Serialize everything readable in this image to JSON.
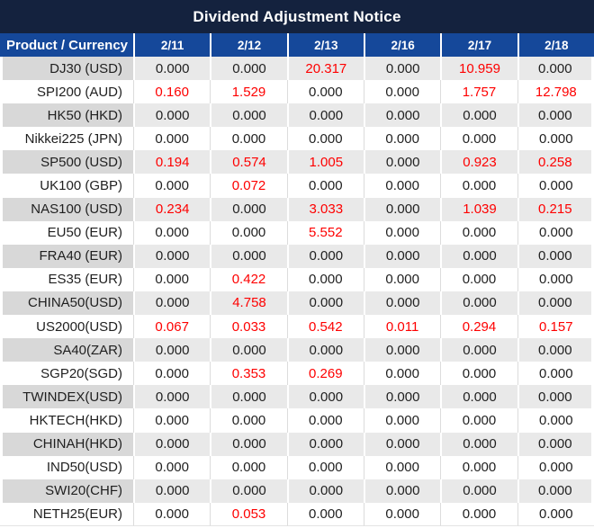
{
  "title": "Dividend Adjustment Notice",
  "colors": {
    "title_bg": "#14223e",
    "header_bg": "#15489a",
    "highlight_red": "#fe0000",
    "alt_row_product_bg": "#d8d8d8",
    "alt_row_value_bg": "#e9e9e9",
    "text_dark": "#1f1f1f"
  },
  "chart_data": {
    "type": "table",
    "title": "Dividend Adjustment Notice",
    "columns": [
      "Product / Currency",
      "2/11",
      "2/12",
      "2/13",
      "2/16",
      "2/17",
      "2/18"
    ],
    "highlight_rule": "non-zero values shown in red",
    "rows": [
      {
        "product": "DJ30 (USD)",
        "values": [
          "0.000",
          "0.000",
          "20.317",
          "0.000",
          "10.959",
          "0.000"
        ]
      },
      {
        "product": "SPI200 (AUD)",
        "values": [
          "0.160",
          "1.529",
          "0.000",
          "0.000",
          "1.757",
          "12.798"
        ]
      },
      {
        "product": "HK50 (HKD)",
        "values": [
          "0.000",
          "0.000",
          "0.000",
          "0.000",
          "0.000",
          "0.000"
        ]
      },
      {
        "product": "Nikkei225 (JPN)",
        "values": [
          "0.000",
          "0.000",
          "0.000",
          "0.000",
          "0.000",
          "0.000"
        ]
      },
      {
        "product": "SP500 (USD)",
        "values": [
          "0.194",
          "0.574",
          "1.005",
          "0.000",
          "0.923",
          "0.258"
        ]
      },
      {
        "product": "UK100 (GBP)",
        "values": [
          "0.000",
          "0.072",
          "0.000",
          "0.000",
          "0.000",
          "0.000"
        ]
      },
      {
        "product": "NAS100 (USD)",
        "values": [
          "0.234",
          "0.000",
          "3.033",
          "0.000",
          "1.039",
          "0.215"
        ]
      },
      {
        "product": "EU50 (EUR)",
        "values": [
          "0.000",
          "0.000",
          "5.552",
          "0.000",
          "0.000",
          "0.000"
        ]
      },
      {
        "product": "FRA40 (EUR)",
        "values": [
          "0.000",
          "0.000",
          "0.000",
          "0.000",
          "0.000",
          "0.000"
        ]
      },
      {
        "product": "ES35 (EUR)",
        "values": [
          "0.000",
          "0.422",
          "0.000",
          "0.000",
          "0.000",
          "0.000"
        ]
      },
      {
        "product": "CHINA50(USD)",
        "values": [
          "0.000",
          "4.758",
          "0.000",
          "0.000",
          "0.000",
          "0.000"
        ]
      },
      {
        "product": "US2000(USD)",
        "values": [
          "0.067",
          "0.033",
          "0.542",
          "0.011",
          "0.294",
          "0.157"
        ]
      },
      {
        "product": "SA40(ZAR)",
        "values": [
          "0.000",
          "0.000",
          "0.000",
          "0.000",
          "0.000",
          "0.000"
        ]
      },
      {
        "product": "SGP20(SGD)",
        "values": [
          "0.000",
          "0.353",
          "0.269",
          "0.000",
          "0.000",
          "0.000"
        ]
      },
      {
        "product": "TWINDEX(USD)",
        "values": [
          "0.000",
          "0.000",
          "0.000",
          "0.000",
          "0.000",
          "0.000"
        ]
      },
      {
        "product": "HKTECH(HKD)",
        "values": [
          "0.000",
          "0.000",
          "0.000",
          "0.000",
          "0.000",
          "0.000"
        ]
      },
      {
        "product": "CHINAH(HKD)",
        "values": [
          "0.000",
          "0.000",
          "0.000",
          "0.000",
          "0.000",
          "0.000"
        ]
      },
      {
        "product": "IND50(USD)",
        "values": [
          "0.000",
          "0.000",
          "0.000",
          "0.000",
          "0.000",
          "0.000"
        ]
      },
      {
        "product": "SWI20(CHF)",
        "values": [
          "0.000",
          "0.000",
          "0.000",
          "0.000",
          "0.000",
          "0.000"
        ]
      },
      {
        "product": "NETH25(EUR)",
        "values": [
          "0.000",
          "0.053",
          "0.000",
          "0.000",
          "0.000",
          "0.000"
        ]
      }
    ]
  }
}
